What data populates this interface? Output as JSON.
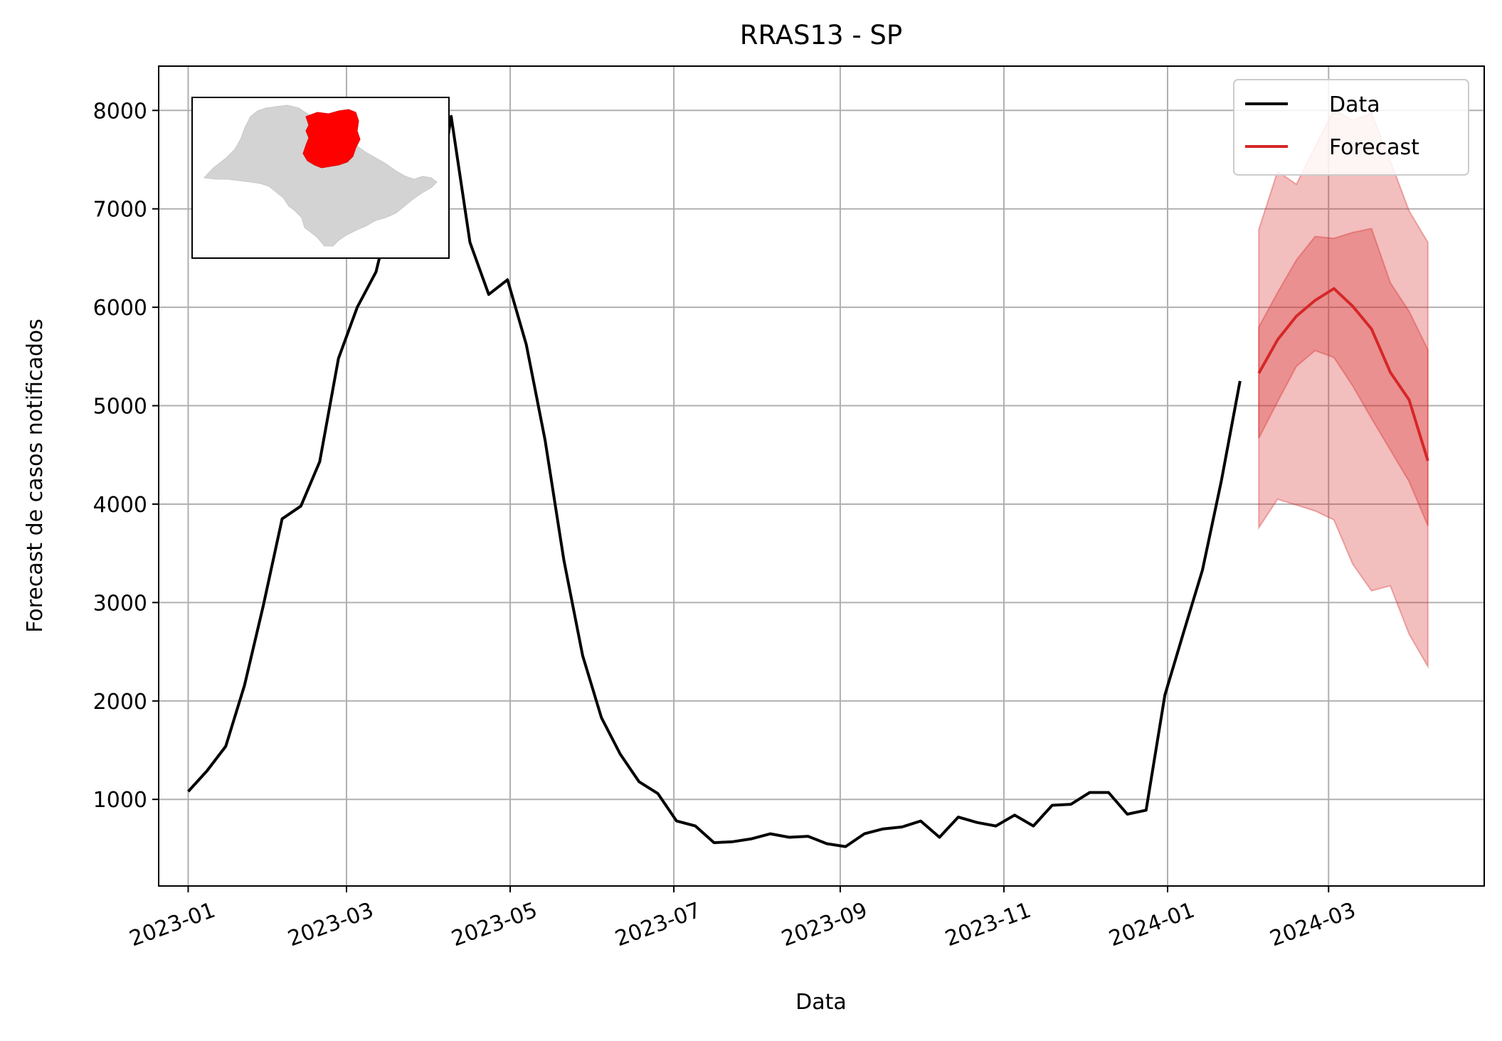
{
  "chart_data": {
    "type": "line",
    "title": "RRAS13 - SP",
    "xlabel": "Data",
    "ylabel": "Forecast de casos notificados",
    "x_tick_labels": [
      "2023-01",
      "2023-03",
      "2023-05",
      "2023-07",
      "2023-09",
      "2023-11",
      "2024-01",
      "2024-03"
    ],
    "y_tick_labels": [
      "1000",
      "2000",
      "3000",
      "4000",
      "5000",
      "6000",
      "7000",
      "8000"
    ],
    "x_range": [
      "2022-12-21",
      "2024-04-28"
    ],
    "ylim": [
      120,
      8450
    ],
    "grid": true,
    "legend": {
      "position": "top-right",
      "entries": [
        {
          "label": "Data",
          "color": "#000000"
        },
        {
          "label": "Forecast",
          "color": "#d62728"
        }
      ]
    },
    "series": [
      {
        "name": "Data",
        "color": "#000000",
        "points": [
          [
            "2023-01-01",
            1080
          ],
          [
            "2023-01-08",
            1290
          ],
          [
            "2023-01-15",
            1540
          ],
          [
            "2023-01-22",
            2160
          ],
          [
            "2023-01-29",
            2970
          ],
          [
            "2023-02-05",
            3850
          ],
          [
            "2023-02-12",
            3980
          ],
          [
            "2023-02-19",
            4430
          ],
          [
            "2023-02-26",
            5480
          ],
          [
            "2023-03-05",
            6000
          ],
          [
            "2023-03-12",
            6360
          ],
          [
            "2023-03-19",
            7150
          ],
          [
            "2023-03-26",
            7350
          ],
          [
            "2023-04-02",
            6710
          ],
          [
            "2023-04-09",
            7940
          ],
          [
            "2023-04-16",
            6660
          ],
          [
            "2023-04-23",
            6130
          ],
          [
            "2023-04-30",
            6280
          ],
          [
            "2023-05-07",
            5620
          ],
          [
            "2023-05-14",
            4650
          ],
          [
            "2023-05-21",
            3430
          ],
          [
            "2023-05-28",
            2460
          ],
          [
            "2023-06-04",
            1830
          ],
          [
            "2023-06-11",
            1460
          ],
          [
            "2023-06-18",
            1180
          ],
          [
            "2023-06-25",
            1060
          ],
          [
            "2023-07-02",
            780
          ],
          [
            "2023-07-09",
            730
          ],
          [
            "2023-07-16",
            560
          ],
          [
            "2023-07-23",
            570
          ],
          [
            "2023-07-30",
            600
          ],
          [
            "2023-08-06",
            650
          ],
          [
            "2023-08-13",
            615
          ],
          [
            "2023-08-20",
            625
          ],
          [
            "2023-08-27",
            550
          ],
          [
            "2023-09-03",
            520
          ],
          [
            "2023-09-10",
            650
          ],
          [
            "2023-09-17",
            700
          ],
          [
            "2023-09-24",
            720
          ],
          [
            "2023-10-01",
            780
          ],
          [
            "2023-10-08",
            615
          ],
          [
            "2023-10-15",
            820
          ],
          [
            "2023-10-22",
            765
          ],
          [
            "2023-10-29",
            730
          ],
          [
            "2023-11-05",
            840
          ],
          [
            "2023-11-12",
            730
          ],
          [
            "2023-11-19",
            940
          ],
          [
            "2023-11-26",
            950
          ],
          [
            "2023-12-03",
            1070
          ],
          [
            "2023-12-10",
            1070
          ],
          [
            "2023-12-17",
            850
          ],
          [
            "2023-12-24",
            890
          ],
          [
            "2023-12-31",
            2060
          ],
          [
            "2024-01-07",
            2700
          ],
          [
            "2024-01-14",
            3330
          ],
          [
            "2024-01-21",
            4230
          ],
          [
            "2024-01-28",
            5250
          ]
        ]
      },
      {
        "name": "Forecast",
        "color": "#d62728",
        "points": [
          [
            "2024-02-04",
            5330
          ],
          [
            "2024-02-11",
            5670
          ],
          [
            "2024-02-18",
            5910
          ],
          [
            "2024-02-25",
            6070
          ],
          [
            "2024-03-03",
            6190
          ],
          [
            "2024-03-10",
            6010
          ],
          [
            "2024-03-17",
            5780
          ],
          [
            "2024-03-24",
            5340
          ],
          [
            "2024-03-31",
            5060
          ],
          [
            "2024-04-07",
            4440
          ]
        ],
        "interval_50": {
          "lower": [
            4670,
            5040,
            5400,
            5560,
            5490,
            5200,
            4870,
            4550,
            4230,
            3780
          ],
          "upper": [
            5800,
            6150,
            6480,
            6720,
            6700,
            6760,
            6800,
            6250,
            5960,
            5570
          ]
        },
        "interval_90": {
          "lower": [
            3760,
            4050,
            3990,
            3930,
            3840,
            3390,
            3120,
            3170,
            2680,
            2350
          ],
          "upper": [
            6790,
            7380,
            7250,
            7630,
            8010,
            7900,
            7970,
            7490,
            6980,
            6660
          ]
        }
      }
    ],
    "inset": {
      "description": "São Paulo state map with RRAS13 highlighted",
      "state_color": "#d3d3d3",
      "region_color": "#ff0000"
    }
  }
}
